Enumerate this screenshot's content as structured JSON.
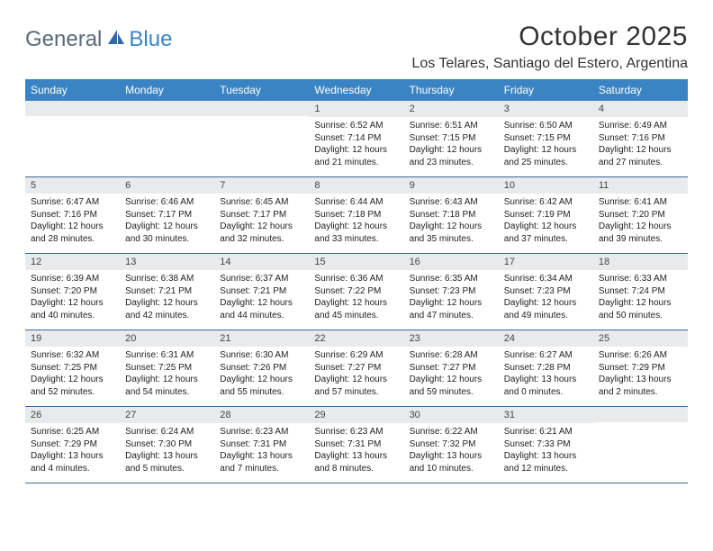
{
  "brand": {
    "part1": "General",
    "part2": "Blue"
  },
  "title": "October 2025",
  "location": "Los Telares, Santiago del Estero, Argentina",
  "colors": {
    "header_bg": "#3a84c4",
    "header_text": "#ffffff",
    "daybar_bg": "#e8eaec",
    "row_border": "#3a6a9a",
    "text": "#222222",
    "brand_gray": "#5a6a78",
    "brand_blue": "#3a84c4",
    "page_bg": "#ffffff"
  },
  "weekdays": [
    "Sunday",
    "Monday",
    "Tuesday",
    "Wednesday",
    "Thursday",
    "Friday",
    "Saturday"
  ],
  "weeks": [
    [
      {
        "day": "",
        "empty": true
      },
      {
        "day": "",
        "empty": true
      },
      {
        "day": "",
        "empty": true
      },
      {
        "day": "1",
        "sunrise": "Sunrise: 6:52 AM",
        "sunset": "Sunset: 7:14 PM",
        "daylight": "Daylight: 12 hours and 21 minutes."
      },
      {
        "day": "2",
        "sunrise": "Sunrise: 6:51 AM",
        "sunset": "Sunset: 7:15 PM",
        "daylight": "Daylight: 12 hours and 23 minutes."
      },
      {
        "day": "3",
        "sunrise": "Sunrise: 6:50 AM",
        "sunset": "Sunset: 7:15 PM",
        "daylight": "Daylight: 12 hours and 25 minutes."
      },
      {
        "day": "4",
        "sunrise": "Sunrise: 6:49 AM",
        "sunset": "Sunset: 7:16 PM",
        "daylight": "Daylight: 12 hours and 27 minutes."
      }
    ],
    [
      {
        "day": "5",
        "sunrise": "Sunrise: 6:47 AM",
        "sunset": "Sunset: 7:16 PM",
        "daylight": "Daylight: 12 hours and 28 minutes."
      },
      {
        "day": "6",
        "sunrise": "Sunrise: 6:46 AM",
        "sunset": "Sunset: 7:17 PM",
        "daylight": "Daylight: 12 hours and 30 minutes."
      },
      {
        "day": "7",
        "sunrise": "Sunrise: 6:45 AM",
        "sunset": "Sunset: 7:17 PM",
        "daylight": "Daylight: 12 hours and 32 minutes."
      },
      {
        "day": "8",
        "sunrise": "Sunrise: 6:44 AM",
        "sunset": "Sunset: 7:18 PM",
        "daylight": "Daylight: 12 hours and 33 minutes."
      },
      {
        "day": "9",
        "sunrise": "Sunrise: 6:43 AM",
        "sunset": "Sunset: 7:18 PM",
        "daylight": "Daylight: 12 hours and 35 minutes."
      },
      {
        "day": "10",
        "sunrise": "Sunrise: 6:42 AM",
        "sunset": "Sunset: 7:19 PM",
        "daylight": "Daylight: 12 hours and 37 minutes."
      },
      {
        "day": "11",
        "sunrise": "Sunrise: 6:41 AM",
        "sunset": "Sunset: 7:20 PM",
        "daylight": "Daylight: 12 hours and 39 minutes."
      }
    ],
    [
      {
        "day": "12",
        "sunrise": "Sunrise: 6:39 AM",
        "sunset": "Sunset: 7:20 PM",
        "daylight": "Daylight: 12 hours and 40 minutes."
      },
      {
        "day": "13",
        "sunrise": "Sunrise: 6:38 AM",
        "sunset": "Sunset: 7:21 PM",
        "daylight": "Daylight: 12 hours and 42 minutes."
      },
      {
        "day": "14",
        "sunrise": "Sunrise: 6:37 AM",
        "sunset": "Sunset: 7:21 PM",
        "daylight": "Daylight: 12 hours and 44 minutes."
      },
      {
        "day": "15",
        "sunrise": "Sunrise: 6:36 AM",
        "sunset": "Sunset: 7:22 PM",
        "daylight": "Daylight: 12 hours and 45 minutes."
      },
      {
        "day": "16",
        "sunrise": "Sunrise: 6:35 AM",
        "sunset": "Sunset: 7:23 PM",
        "daylight": "Daylight: 12 hours and 47 minutes."
      },
      {
        "day": "17",
        "sunrise": "Sunrise: 6:34 AM",
        "sunset": "Sunset: 7:23 PM",
        "daylight": "Daylight: 12 hours and 49 minutes."
      },
      {
        "day": "18",
        "sunrise": "Sunrise: 6:33 AM",
        "sunset": "Sunset: 7:24 PM",
        "daylight": "Daylight: 12 hours and 50 minutes."
      }
    ],
    [
      {
        "day": "19",
        "sunrise": "Sunrise: 6:32 AM",
        "sunset": "Sunset: 7:25 PM",
        "daylight": "Daylight: 12 hours and 52 minutes."
      },
      {
        "day": "20",
        "sunrise": "Sunrise: 6:31 AM",
        "sunset": "Sunset: 7:25 PM",
        "daylight": "Daylight: 12 hours and 54 minutes."
      },
      {
        "day": "21",
        "sunrise": "Sunrise: 6:30 AM",
        "sunset": "Sunset: 7:26 PM",
        "daylight": "Daylight: 12 hours and 55 minutes."
      },
      {
        "day": "22",
        "sunrise": "Sunrise: 6:29 AM",
        "sunset": "Sunset: 7:27 PM",
        "daylight": "Daylight: 12 hours and 57 minutes."
      },
      {
        "day": "23",
        "sunrise": "Sunrise: 6:28 AM",
        "sunset": "Sunset: 7:27 PM",
        "daylight": "Daylight: 12 hours and 59 minutes."
      },
      {
        "day": "24",
        "sunrise": "Sunrise: 6:27 AM",
        "sunset": "Sunset: 7:28 PM",
        "daylight": "Daylight: 13 hours and 0 minutes."
      },
      {
        "day": "25",
        "sunrise": "Sunrise: 6:26 AM",
        "sunset": "Sunset: 7:29 PM",
        "daylight": "Daylight: 13 hours and 2 minutes."
      }
    ],
    [
      {
        "day": "26",
        "sunrise": "Sunrise: 6:25 AM",
        "sunset": "Sunset: 7:29 PM",
        "daylight": "Daylight: 13 hours and 4 minutes."
      },
      {
        "day": "27",
        "sunrise": "Sunrise: 6:24 AM",
        "sunset": "Sunset: 7:30 PM",
        "daylight": "Daylight: 13 hours and 5 minutes."
      },
      {
        "day": "28",
        "sunrise": "Sunrise: 6:23 AM",
        "sunset": "Sunset: 7:31 PM",
        "daylight": "Daylight: 13 hours and 7 minutes."
      },
      {
        "day": "29",
        "sunrise": "Sunrise: 6:23 AM",
        "sunset": "Sunset: 7:31 PM",
        "daylight": "Daylight: 13 hours and 8 minutes."
      },
      {
        "day": "30",
        "sunrise": "Sunrise: 6:22 AM",
        "sunset": "Sunset: 7:32 PM",
        "daylight": "Daylight: 13 hours and 10 minutes."
      },
      {
        "day": "31",
        "sunrise": "Sunrise: 6:21 AM",
        "sunset": "Sunset: 7:33 PM",
        "daylight": "Daylight: 13 hours and 12 minutes."
      },
      {
        "day": "",
        "empty": true
      }
    ]
  ]
}
